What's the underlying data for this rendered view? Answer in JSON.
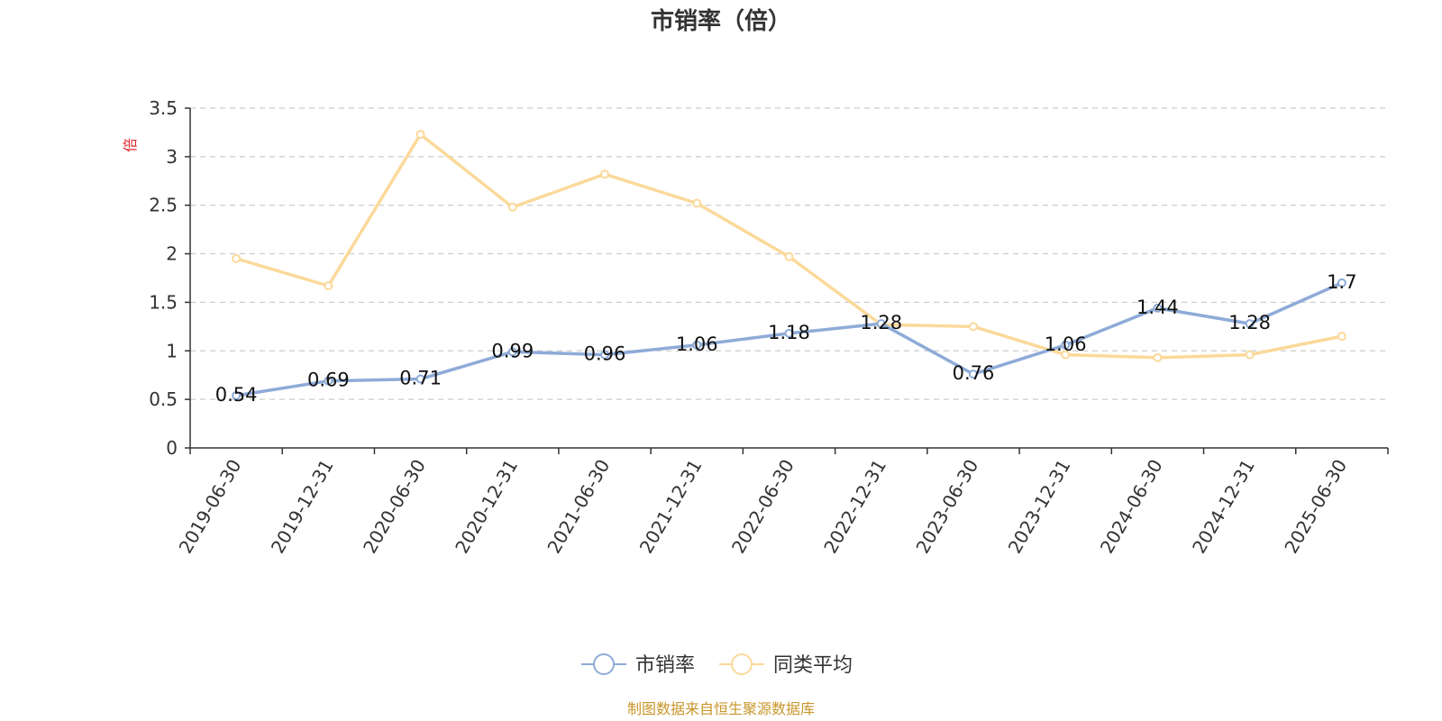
{
  "chart_data": {
    "type": "line",
    "title": "市销率（倍）",
    "y_unit": "倍",
    "x": [
      "2019-06-30",
      "2019-12-31",
      "2020-06-30",
      "2020-12-31",
      "2021-06-30",
      "2021-12-31",
      "2022-06-30",
      "2022-12-31",
      "2023-06-30",
      "2023-12-31",
      "2024-06-30",
      "2024-12-31",
      "2025-06-30"
    ],
    "series": [
      {
        "name": "市销率",
        "color": "#8eabd8",
        "values": [
          0.54,
          0.69,
          0.71,
          0.99,
          0.96,
          1.06,
          1.18,
          1.28,
          0.76,
          1.06,
          1.44,
          1.28,
          1.7
        ],
        "show_labels": true
      },
      {
        "name": "同类平均",
        "color": "#fbd99a",
        "values": [
          1.95,
          1.67,
          3.23,
          2.48,
          2.82,
          2.52,
          1.97,
          1.27,
          1.25,
          0.96,
          0.93,
          0.96,
          1.15
        ],
        "show_labels": false
      }
    ],
    "ylim": [
      0,
      3.5
    ],
    "yticks": [
      "0",
      "0.5",
      "1",
      "1.5",
      "2",
      "2.5",
      "3",
      "3.5"
    ],
    "grid": true,
    "legend_position": "bottom-center",
    "unit_color": "#e0282e"
  },
  "footer": {
    "source": "制图数据来自恒生聚源数据库",
    "color": "#c8962a"
  }
}
